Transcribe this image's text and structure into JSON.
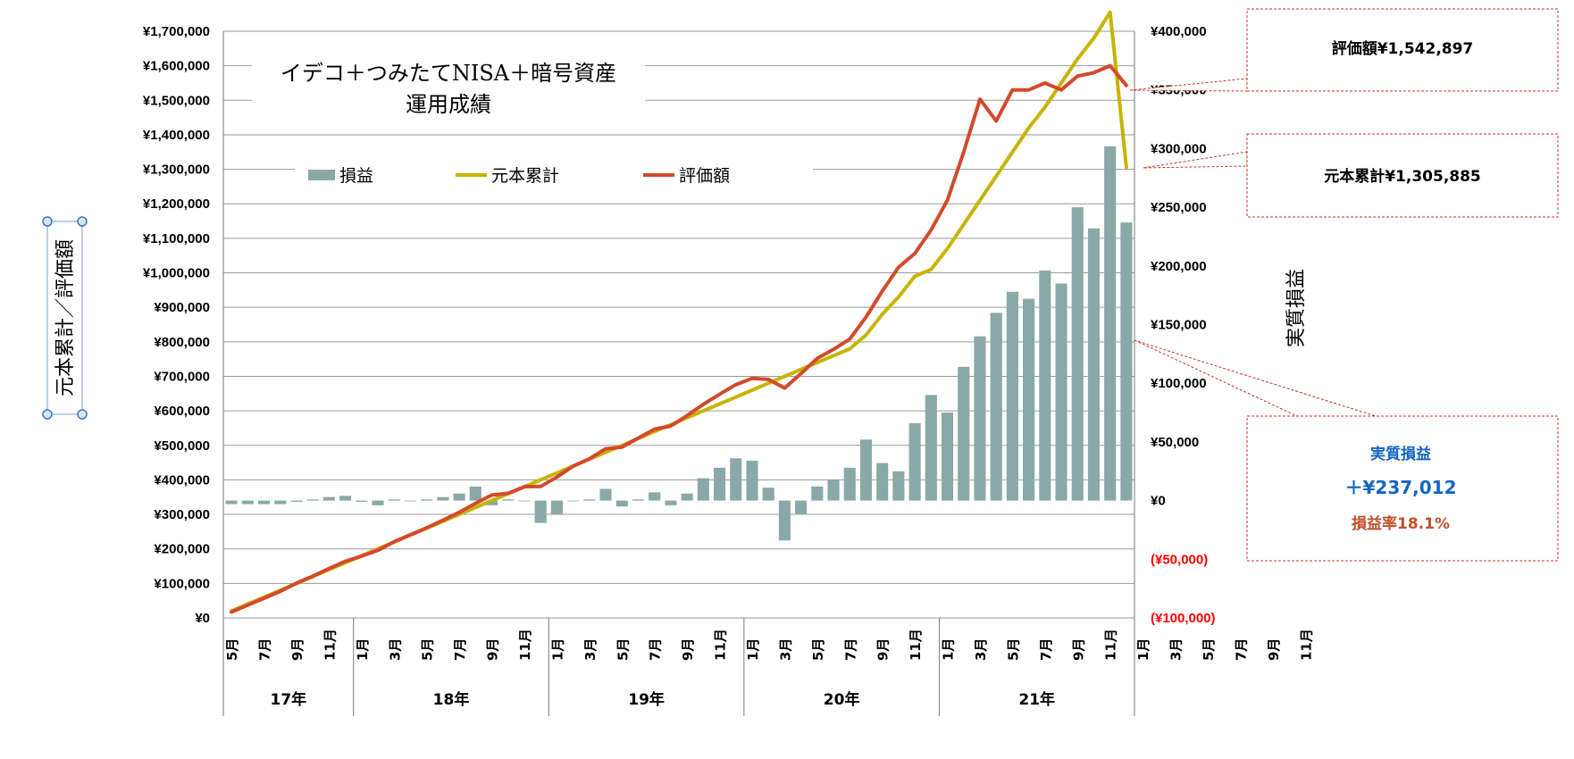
{
  "chart_data": {
    "type": "bar+line",
    "title_line1": "イデコ＋つみたてNISA＋暗号資産",
    "title_line2": "運用成績",
    "ylabel_left": "元本累計／評価額",
    "ylabel_right": "実質損益",
    "left_axis": {
      "range": [
        0,
        1700000
      ],
      "ticks": [
        "¥0",
        "¥100,000",
        "¥200,000",
        "¥300,000",
        "¥400,000",
        "¥500,000",
        "¥600,000",
        "¥700,000",
        "¥800,000",
        "¥900,000",
        "¥1,000,000",
        "¥1,100,000",
        "¥1,200,000",
        "¥1,300,000",
        "¥1,400,000",
        "¥1,500,000",
        "¥1,600,000",
        "¥1,700,000"
      ]
    },
    "right_axis": {
      "range": [
        -100000,
        400000
      ],
      "ticks": [
        "(¥100,000)",
        "(¥50,000)",
        "¥0",
        "¥50,000",
        "¥100,000",
        "¥150,000",
        "¥200,000",
        "¥250,000",
        "¥300,000",
        "¥350,000",
        "¥400,000"
      ],
      "negative_color": "#ff0000"
    },
    "month_labels": [
      "5月",
      "",
      "7月",
      "",
      "9月",
      "",
      "11月",
      "",
      "1月",
      "",
      "3月",
      "",
      "5月",
      "",
      "7月",
      "",
      "9月",
      "",
      "11月",
      "",
      "1月",
      "",
      "3月",
      "",
      "5月",
      "",
      "7月",
      "",
      "9月",
      "",
      "11月",
      "",
      "1月",
      "",
      "3月",
      "",
      "5月",
      "",
      "7月",
      "",
      "9月",
      "",
      "11月",
      "",
      "1月",
      "",
      "3月",
      "",
      "5月",
      "",
      "7月",
      "",
      "9月",
      "",
      "11月",
      "",
      "1月",
      "",
      "3月",
      "",
      "5月",
      "",
      "7月",
      "",
      "9月",
      "",
      "11月",
      ""
    ],
    "year_groups": [
      {
        "label": "17年",
        "start": 0,
        "count": 8
      },
      {
        "label": "18年",
        "start": 8,
        "count": 12
      },
      {
        "label": "19年",
        "start": 20,
        "count": 12
      },
      {
        "label": "20年",
        "start": 32,
        "count": 12
      },
      {
        "label": "21年",
        "start": 44,
        "count": 12
      }
    ],
    "series": [
      {
        "name": "損益",
        "kind": "bar",
        "axis": "right",
        "color": "#8aa8a8",
        "values": [
          -3000,
          -3000,
          -3000,
          -3000,
          -1000,
          1000,
          3000,
          4000,
          -1000,
          -4000,
          1000,
          0,
          1000,
          3000,
          6000,
          12000,
          -4000,
          1000,
          0,
          -19000,
          -12000,
          0,
          1000,
          10000,
          -5000,
          1000,
          7000,
          -4000,
          6000,
          19000,
          28000,
          36000,
          34000,
          11000,
          -34000,
          -12000,
          12000,
          18000,
          28000,
          52000,
          32000,
          25000,
          66000,
          90000,
          75000,
          114000,
          140000,
          160000,
          178000,
          172000,
          196000,
          185000,
          250000,
          232000,
          302000,
          237012
        ]
      },
      {
        "name": "元本累計",
        "kind": "line",
        "axis": "left",
        "color": "#c8b400",
        "values": [
          20000,
          40000,
          60000,
          80000,
          100000,
          120000,
          140000,
          160000,
          180000,
          200000,
          220000,
          240000,
          260000,
          280000,
          300000,
          320000,
          340000,
          360000,
          380000,
          400000,
          420000,
          440000,
          460000,
          480000,
          500000,
          520000,
          540000,
          560000,
          580000,
          600000,
          620000,
          640000,
          660000,
          680000,
          700000,
          720000,
          740000,
          760000,
          780000,
          820000,
          880000,
          930000,
          990000,
          1010000,
          1070000,
          1140000,
          1210000,
          1280000,
          1350000,
          1420000,
          1480000,
          1550000,
          1620000,
          1680000,
          1755000,
          1305885
        ]
      },
      {
        "name": "評価額",
        "kind": "line",
        "axis": "left",
        "color": "#d24a2c",
        "values": [
          17000,
          37000,
          57000,
          77000,
          101000,
          121000,
          143000,
          164000,
          179000,
          196000,
          221000,
          241000,
          261000,
          283000,
          306000,
          332000,
          356000,
          361000,
          380000,
          381000,
          408000,
          440000,
          461000,
          490000,
          495000,
          521000,
          547000,
          556000,
          586000,
          619000,
          648000,
          676000,
          694000,
          691000,
          666000,
          708000,
          752000,
          778000,
          808000,
          872000,
          947000,
          1016000,
          1056000,
          1124000,
          1210000,
          1350000,
          1503000,
          1440000,
          1530000,
          1530000,
          1550000,
          1530000,
          1570000,
          1580000,
          1600000,
          1542897
        ]
      }
    ],
    "callouts": [
      {
        "label": "評価額",
        "value": "¥1,542,897"
      },
      {
        "label": "元本累計",
        "value": "¥1,305,885"
      },
      {
        "label": "実質損益",
        "value": "＋¥237,012",
        "rate": "損益率18.1%"
      }
    ]
  }
}
